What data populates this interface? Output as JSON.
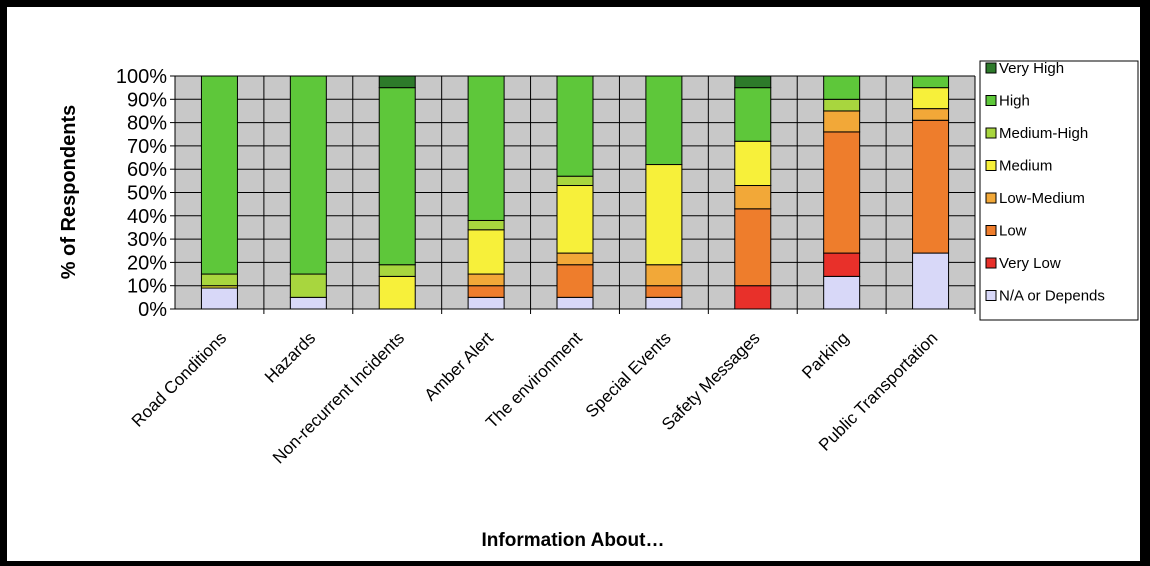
{
  "chart_data": {
    "type": "bar",
    "stacked": true,
    "title": "",
    "xlabel": "Information About…",
    "ylabel": "% of Respondents",
    "ylim": [
      0,
      100
    ],
    "yticks": [
      "0%",
      "10%",
      "20%",
      "30%",
      "40%",
      "50%",
      "60%",
      "70%",
      "80%",
      "90%",
      "100%"
    ],
    "grid": true,
    "legend_position": "right",
    "categories": [
      "Road Conditions",
      "Hazards",
      "Non-recurrent Incidents",
      "Amber Alert",
      "The environment",
      "Special Events",
      "Safety Messages",
      "Parking",
      "Public Transportation"
    ],
    "series": [
      {
        "name": "N/A or Depends",
        "color": "#d8d8f8",
        "values": [
          9,
          5,
          0,
          5,
          5,
          5,
          0,
          14,
          24
        ]
      },
      {
        "name": "Very Low",
        "color": "#e8302a",
        "values": [
          0,
          0,
          0,
          0,
          0,
          0,
          10,
          10,
          0
        ]
      },
      {
        "name": "Low",
        "color": "#ee7d2c",
        "values": [
          0,
          0,
          0,
          5,
          14,
          5,
          33,
          52,
          57
        ]
      },
      {
        "name": "Low-Medium",
        "color": "#f2a838",
        "values": [
          0,
          0,
          0,
          5,
          5,
          9,
          10,
          9,
          5
        ]
      },
      {
        "name": "Medium",
        "color": "#f7f03a",
        "values": [
          1,
          0,
          14,
          19,
          29,
          43,
          19,
          0,
          9
        ]
      },
      {
        "name": "Medium-High",
        "color": "#a8d63e",
        "values": [
          5,
          10,
          5,
          4,
          4,
          0,
          0,
          5,
          0
        ]
      },
      {
        "name": "High",
        "color": "#5ec73a",
        "values": [
          85,
          85,
          76,
          62,
          43,
          38,
          23,
          10,
          5
        ]
      },
      {
        "name": "Very High",
        "color": "#2d7a2a",
        "values": [
          0,
          0,
          5,
          0,
          0,
          0,
          5,
          0,
          0
        ]
      }
    ],
    "legend_order": [
      "Very High",
      "High",
      "Medium-High",
      "Medium",
      "Low-Medium",
      "Low",
      "Very Low",
      "N/A or Depends"
    ],
    "plot_background": "#c8c8c8"
  }
}
